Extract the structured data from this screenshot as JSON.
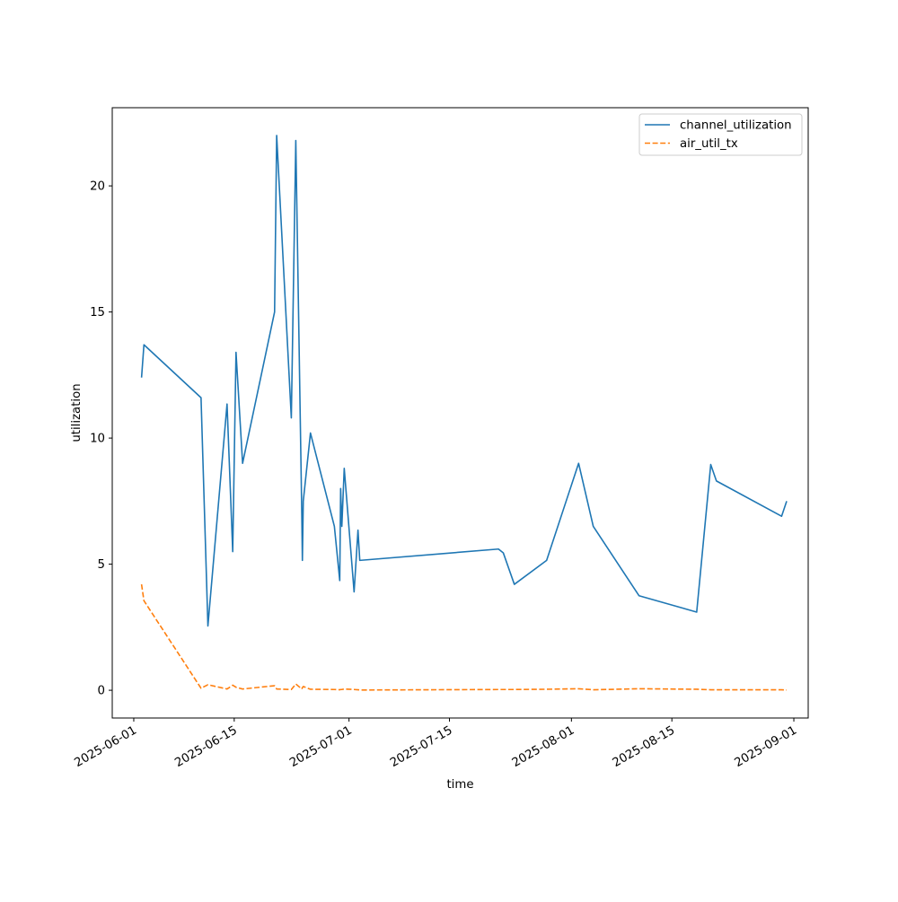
{
  "chart_data": {
    "type": "line",
    "title": "",
    "xlabel": "time",
    "ylabel": "utilization",
    "x_axis_type": "date",
    "xlim": [
      "2025-05-29",
      "2025-09-03"
    ],
    "ylim": [
      -1.1,
      23.1
    ],
    "x_ticks": [
      "2025-06-01",
      "2025-06-15",
      "2025-07-01",
      "2025-07-15",
      "2025-08-01",
      "2025-08-15",
      "2025-09-01"
    ],
    "y_ticks": [
      0,
      5,
      10,
      15,
      20
    ],
    "grid": false,
    "legend_position": "top-right",
    "series": [
      {
        "name": "channel_utilization",
        "color": "#1f77b4",
        "line_style": "solid",
        "points": [
          [
            "2025-06-02T02:00",
            12.4
          ],
          [
            "2025-06-02T10:00",
            13.7
          ],
          [
            "2025-06-10T09:00",
            11.6
          ],
          [
            "2025-06-11T08:00",
            2.55
          ],
          [
            "2025-06-14T00:00",
            11.35
          ],
          [
            "2025-06-14T19:00",
            5.5
          ],
          [
            "2025-06-15T06:00",
            13.4
          ],
          [
            "2025-06-16T04:00",
            9.0
          ],
          [
            "2025-06-20T15:00",
            15.0
          ],
          [
            "2025-06-20T22:00",
            22.0
          ],
          [
            "2025-06-22T23:00",
            10.8
          ],
          [
            "2025-06-23T14:00",
            21.8
          ],
          [
            "2025-06-24T10:00",
            7.0
          ],
          [
            "2025-06-24T12:00",
            5.15
          ],
          [
            "2025-06-24T15:00",
            7.5
          ],
          [
            "2025-06-25T15:00",
            10.2
          ],
          [
            "2025-06-28T23:00",
            6.5
          ],
          [
            "2025-06-29T17:00",
            4.35
          ],
          [
            "2025-06-29T20:00",
            8.0
          ],
          [
            "2025-06-30T00:00",
            6.5
          ],
          [
            "2025-06-30T08:00",
            8.8
          ],
          [
            "2025-07-01T17:00",
            3.9
          ],
          [
            "2025-07-02T06:00",
            6.35
          ],
          [
            "2025-07-02T12:00",
            5.15
          ],
          [
            "2025-07-21T20:00",
            5.6
          ],
          [
            "2025-07-22T12:00",
            5.45
          ],
          [
            "2025-07-24T01:00",
            4.2
          ],
          [
            "2025-07-28T13:00",
            5.15
          ],
          [
            "2025-08-02T00:00",
            9.0
          ],
          [
            "2025-08-04T01:00",
            6.5
          ],
          [
            "2025-08-10T10:00",
            3.75
          ],
          [
            "2025-08-18T11:00",
            3.1
          ],
          [
            "2025-08-20T10:00",
            8.95
          ],
          [
            "2025-08-21T05:00",
            8.3
          ],
          [
            "2025-08-30T07:00",
            6.9
          ],
          [
            "2025-08-31T00:00",
            7.5
          ]
        ]
      },
      {
        "name": "air_util_tx",
        "color": "#ff7f0e",
        "line_style": "dashed",
        "points": [
          [
            "2025-06-02T02:00",
            4.2
          ],
          [
            "2025-06-02T10:00",
            3.55
          ],
          [
            "2025-06-10T09:00",
            0.08
          ],
          [
            "2025-06-11T08:00",
            0.22
          ],
          [
            "2025-06-14T00:00",
            0.05
          ],
          [
            "2025-06-14T19:00",
            0.2
          ],
          [
            "2025-06-15T06:00",
            0.12
          ],
          [
            "2025-06-16T04:00",
            0.05
          ],
          [
            "2025-06-20T15:00",
            0.18
          ],
          [
            "2025-06-20T22:00",
            0.05
          ],
          [
            "2025-06-22T23:00",
            0.03
          ],
          [
            "2025-06-23T14:00",
            0.25
          ],
          [
            "2025-06-24T10:00",
            0.05
          ],
          [
            "2025-06-24T12:00",
            0.1
          ],
          [
            "2025-06-24T15:00",
            0.15
          ],
          [
            "2025-06-25T15:00",
            0.04
          ],
          [
            "2025-06-28T23:00",
            0.03
          ],
          [
            "2025-06-29T17:00",
            0.02
          ],
          [
            "2025-06-29T20:00",
            0.03
          ],
          [
            "2025-06-30T00:00",
            0.03
          ],
          [
            "2025-06-30T08:00",
            0.05
          ],
          [
            "2025-07-01T17:00",
            0.03
          ],
          [
            "2025-07-02T06:00",
            0.02
          ],
          [
            "2025-07-02T12:00",
            0.01
          ],
          [
            "2025-07-21T20:00",
            0.03
          ],
          [
            "2025-07-22T12:00",
            0.03
          ],
          [
            "2025-07-24T01:00",
            0.03
          ],
          [
            "2025-07-28T13:00",
            0.04
          ],
          [
            "2025-08-02T00:00",
            0.06
          ],
          [
            "2025-08-04T01:00",
            0.02
          ],
          [
            "2025-08-10T10:00",
            0.06
          ],
          [
            "2025-08-18T11:00",
            0.04
          ],
          [
            "2025-08-20T10:00",
            0.02
          ],
          [
            "2025-08-21T05:00",
            0.02
          ],
          [
            "2025-08-30T07:00",
            0.02
          ],
          [
            "2025-08-31T00:00",
            0.01
          ]
        ]
      }
    ]
  }
}
